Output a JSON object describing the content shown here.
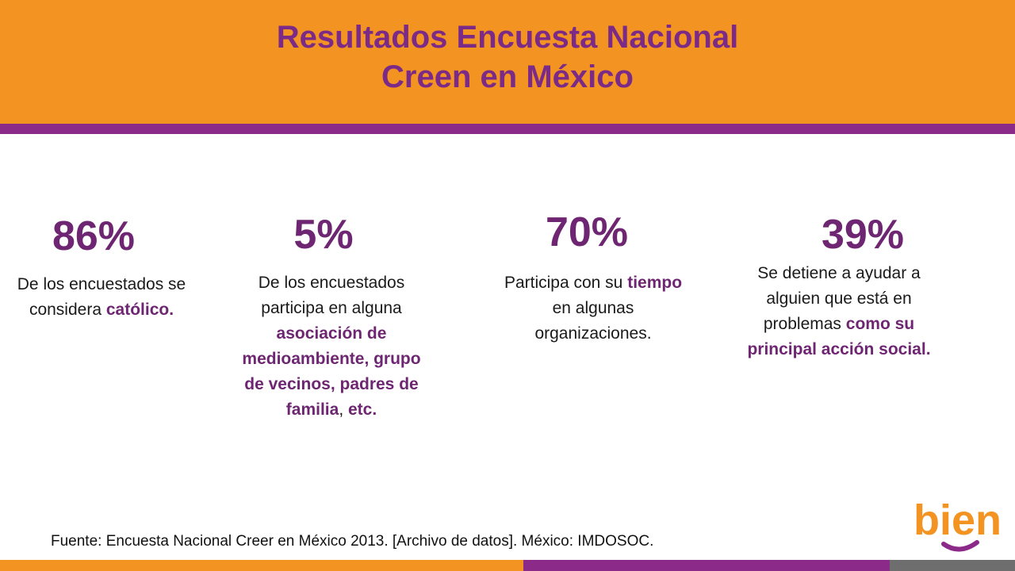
{
  "header": {
    "title_line1": "Resultados Encuesta Nacional",
    "title_line2": "Creen en México"
  },
  "stats": [
    {
      "value": "86%",
      "text_plain1": "De los encuestados se considera ",
      "text_bold1": "católico."
    },
    {
      "value": "5%",
      "text_plain1": "De los encuestados participa en alguna ",
      "text_bold1": "asociación de medioambiente, grupo de vecinos, padres de familia",
      "text_plain2": ", ",
      "text_bold2": "etc."
    },
    {
      "value": "70%",
      "text_plain1": "Participa con su ",
      "text_bold1": "tiempo",
      "text_plain2": " en algunas organizaciones."
    },
    {
      "value": "39%",
      "text_plain1": "Se detiene a ayudar a alguien que está en problemas ",
      "text_bold1": "como su principal acción social."
    }
  ],
  "footer": {
    "source": "Fuente: Encuesta Nacional Creer en México 2013. [Archivo de datos]. México: IMDOSOC."
  },
  "logo": {
    "text": "bien",
    "icon": "bien-logo-icon"
  },
  "colors": {
    "orange": "#F39322",
    "purple": "#8C2A8A",
    "dark_purple": "#6E2672",
    "gray": "#6E6E6E"
  }
}
